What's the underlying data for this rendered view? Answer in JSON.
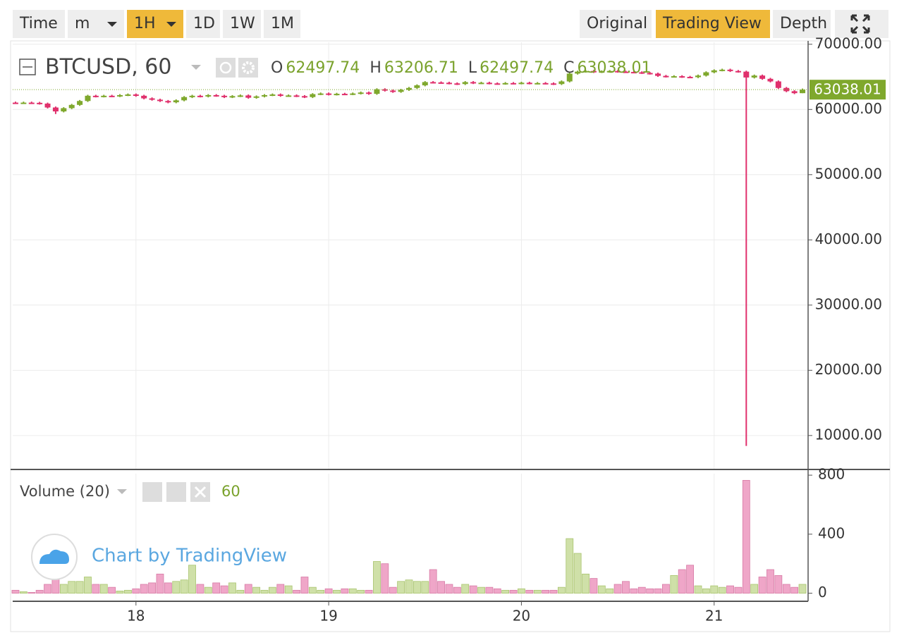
{
  "toolbar": {
    "left": [
      "Time",
      "m",
      "1H",
      "1D",
      "1W",
      "1M"
    ],
    "right": [
      "Original",
      "Trading View",
      "Depth"
    ]
  },
  "chart_data": {
    "type": "candlestick",
    "symbol": "BTCUSD, 60",
    "ohlc_labels": [
      "O",
      "H",
      "L",
      "C"
    ],
    "volume_title": "Volume (20)",
    "watermark": "Chart by TradingView",
    "up_color": "#7fa82d",
    "down_color": "#e0306c",
    "volume_up_color": "#cfe0a8",
    "volume_down_color": "#efa6c8",
    "grid": true,
    "xlim": [
      -0.35,
      98.7
    ],
    "xticks": [
      {
        "value": 15,
        "label": "18"
      },
      {
        "value": 39,
        "label": "19"
      },
      {
        "value": 63,
        "label": "20"
      },
      {
        "value": 87,
        "label": "21"
      }
    ],
    "ylim": [
      4900,
      70300
    ],
    "yticks": [
      {
        "value": 10000,
        "label": "10000.00"
      },
      {
        "value": 20000,
        "label": "20000.00"
      },
      {
        "value": 30000,
        "label": "30000.00"
      },
      {
        "value": 40000,
        "label": "40000.00"
      },
      {
        "value": 50000,
        "label": "50000.00"
      },
      {
        "value": 60000,
        "label": "60000.00"
      },
      {
        "value": 70000,
        "label": "70000.00"
      }
    ],
    "volume_ylim": [
      -50,
      810
    ],
    "volume_yticks": [
      0,
      400,
      800
    ],
    "open": [
      61050,
      61000,
      61050,
      61020,
      60900,
      60300,
      59700,
      60200,
      60700,
      61300,
      62100,
      62000,
      62100,
      62050,
      62200,
      62300,
      62100,
      61700,
      61500,
      61300,
      61100,
      61400,
      61900,
      62100,
      62000,
      62200,
      62100,
      61900,
      62050,
      62150,
      61800,
      62000,
      62200,
      62300,
      62100,
      62150,
      62050,
      61900,
      62350,
      62450,
      62300,
      62400,
      62350,
      62450,
      62600,
      62400,
      63100,
      62900,
      62700,
      63000,
      63300,
      63700,
      64200,
      64150,
      64100,
      64000,
      63900,
      64200,
      64050,
      64100,
      64000,
      63950,
      64050,
      64000,
      64100,
      64000,
      64050,
      64000,
      63900,
      64300,
      65500,
      65800,
      65900,
      65750,
      65850,
      65900,
      65800,
      65750,
      65700,
      65600,
      65500,
      65150,
      65050,
      65100,
      65000,
      64950,
      65200,
      65700,
      66000,
      66100,
      65900,
      65800,
      64900,
      65200,
      64700,
      64300,
      63300,
      62800,
      62497.74
    ],
    "high": [
      61200,
      61200,
      61200,
      61170,
      61050,
      60450,
      60350,
      60850,
      61450,
      62250,
      62250,
      62250,
      62250,
      62350,
      62450,
      62450,
      62250,
      61850,
      61650,
      61450,
      61550,
      62050,
      62250,
      62250,
      62350,
      62350,
      62250,
      62200,
      62300,
      62300,
      62150,
      62350,
      62450,
      62450,
      62300,
      62300,
      62200,
      62500,
      62600,
      62600,
      62550,
      62550,
      62600,
      62750,
      62750,
      63250,
      63250,
      63050,
      63150,
      63450,
      63850,
      64350,
      64350,
      64300,
      64250,
      64150,
      64350,
      64350,
      64250,
      64250,
      64150,
      64200,
      64200,
      64250,
      64250,
      64200,
      64200,
      64150,
      64450,
      65650,
      65950,
      66050,
      66050,
      66000,
      66050,
      66050,
      65950,
      65900,
      65850,
      65750,
      65650,
      65300,
      65250,
      65250,
      65150,
      65350,
      65850,
      66150,
      66250,
      66250,
      66050,
      65950,
      65350,
      65350,
      64850,
      64450,
      63450,
      62950,
      63206.71
    ],
    "low": [
      60850,
      60850,
      60870,
      60750,
      60150,
      59300,
      59550,
      60050,
      60550,
      61150,
      61850,
      61850,
      61900,
      61900,
      62050,
      61950,
      61550,
      61350,
      61150,
      60950,
      60950,
      61250,
      61750,
      61850,
      61850,
      61950,
      61750,
      61750,
      61900,
      61650,
      61650,
      61850,
      62050,
      61950,
      61950,
      61900,
      61750,
      61750,
      62200,
      62150,
      62150,
      62200,
      62200,
      62300,
      62250,
      62250,
      62750,
      62550,
      62550,
      62850,
      63150,
      63550,
      64000,
      63950,
      63850,
      63750,
      63750,
      63900,
      63900,
      63850,
      63800,
      63800,
      63850,
      63850,
      63850,
      63850,
      63850,
      63750,
      63750,
      64150,
      65350,
      65650,
      65600,
      65600,
      65700,
      65650,
      65600,
      65550,
      65450,
      65350,
      65000,
      64900,
      64900,
      64850,
      64800,
      64800,
      65050,
      65550,
      65850,
      65750,
      65650,
      8400,
      64750,
      64550,
      64150,
      63150,
      62650,
      62350,
      62497.74
    ],
    "close": [
      61000,
      61050,
      61020,
      60900,
      60300,
      59700,
      60200,
      60700,
      61300,
      62100,
      62000,
      62100,
      62050,
      62200,
      62300,
      62100,
      61700,
      61500,
      61300,
      61100,
      61400,
      61900,
      62100,
      62000,
      62200,
      62100,
      61900,
      62050,
      62150,
      61800,
      62000,
      62200,
      62300,
      62100,
      62150,
      62050,
      61900,
      62350,
      62450,
      62300,
      62400,
      62350,
      62450,
      62600,
      62400,
      63100,
      62900,
      62700,
      63000,
      63300,
      63700,
      64200,
      64150,
      64100,
      64000,
      63900,
      64200,
      64050,
      64100,
      64000,
      63950,
      64050,
      64000,
      64100,
      64000,
      64050,
      64000,
      63900,
      64300,
      65500,
      65800,
      65900,
      65750,
      65850,
      65900,
      65800,
      65750,
      65700,
      65600,
      65500,
      65150,
      65050,
      65100,
      65000,
      64950,
      65200,
      65700,
      66000,
      66100,
      65900,
      65800,
      64900,
      65200,
      64700,
      64300,
      63300,
      62800,
      62497.74,
      63038.01
    ],
    "volume": [
      20,
      10,
      5,
      20,
      60,
      100,
      60,
      80,
      80,
      110,
      60,
      60,
      40,
      15,
      20,
      30,
      60,
      70,
      130,
      70,
      80,
      90,
      190,
      60,
      40,
      70,
      50,
      70,
      20,
      60,
      40,
      20,
      40,
      60,
      50,
      20,
      110,
      40,
      20,
      30,
      20,
      30,
      30,
      20,
      20,
      215,
      200,
      40,
      80,
      90,
      80,
      80,
      160,
      80,
      60,
      40,
      60,
      50,
      40,
      40,
      30,
      20,
      20,
      30,
      20,
      20,
      20,
      20,
      40,
      370,
      270,
      130,
      100,
      50,
      30,
      60,
      80,
      30,
      40,
      30,
      30,
      60,
      120,
      160,
      190,
      50,
      30,
      50,
      40,
      50,
      40,
      765,
      60,
      110,
      160,
      120,
      60,
      40,
      60
    ]
  }
}
